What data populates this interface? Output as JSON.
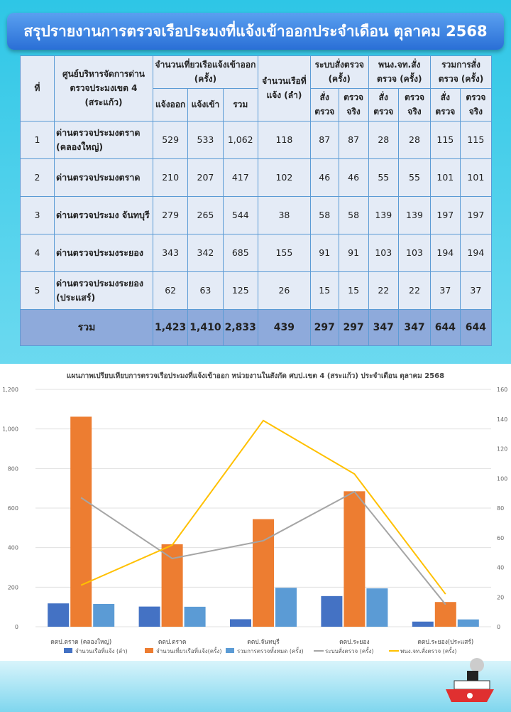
{
  "title": "สรุปรายงานการตรวจเรือประมงที่แจ้งเข้าออกประจำเดือน ตุลาคม 2568",
  "table": {
    "headers": {
      "no": "ที่",
      "center": "ศูนย์บริหารจัดการด่านตรวจประมงเขต 4 (สระแก้ว)",
      "trips": "จำนวนเที่ยวเรือแจ้งเข้าออก (ครั้ง)",
      "trips_out": "แจ้งออก",
      "trips_in": "แจ้งเข้า",
      "trips_total": "รวม",
      "vessels": "จำนวนเรือที่แจ้ง (ลำ)",
      "system": "ระบบสั่งตรวจ (ครั้ง)",
      "officer": "พนง.จท.สั่งตรวจ (ครั้ง)",
      "total_insp": "รวมการสั่งตรวจ (ครั้ง)",
      "ordered": "สั่งตรวจ",
      "actual": "ตรวจจริง"
    },
    "rows": [
      {
        "no": "1",
        "name": "ด่านตรวจประมงตราด (คลองใหญ่)",
        "out": "529",
        "in": "533",
        "total": "1,062",
        "vessels": "118",
        "sys_o": "87",
        "sys_a": "87",
        "off_o": "28",
        "off_a": "28",
        "tot_o": "115",
        "tot_a": "115"
      },
      {
        "no": "2",
        "name": "ด่านตรวจประมงตราด",
        "out": "210",
        "in": "207",
        "total": "417",
        "vessels": "102",
        "sys_o": "46",
        "sys_a": "46",
        "off_o": "55",
        "off_a": "55",
        "tot_o": "101",
        "tot_a": "101"
      },
      {
        "no": "3",
        "name": "ด่านตรวจประมง จันทบุรี",
        "out": "279",
        "in": "265",
        "total": "544",
        "vessels": "38",
        "sys_o": "58",
        "sys_a": "58",
        "off_o": "139",
        "off_a": "139",
        "tot_o": "197",
        "tot_a": "197"
      },
      {
        "no": "4",
        "name": "ด่านตรวจประมงระยอง",
        "out": "343",
        "in": "342",
        "total": "685",
        "vessels": "155",
        "sys_o": "91",
        "sys_a": "91",
        "off_o": "103",
        "off_a": "103",
        "tot_o": "194",
        "tot_a": "194"
      },
      {
        "no": "5",
        "name": "ด่านตรวจประมงระยอง (ประแสร์)",
        "out": "62",
        "in": "63",
        "total": "125",
        "vessels": "26",
        "sys_o": "15",
        "sys_a": "15",
        "off_o": "22",
        "off_a": "22",
        "tot_o": "37",
        "tot_a": "37"
      }
    ],
    "total": {
      "label": "รวม",
      "out": "1,423",
      "in": "1,410",
      "total": "2,833",
      "vessels": "439",
      "sys_o": "297",
      "sys_a": "297",
      "off_o": "347",
      "off_a": "347",
      "tot_o": "644",
      "tot_a": "644"
    }
  },
  "chart_data": {
    "type": "bar",
    "title": "แผนภาพเปรียบเทียบการตรวจเรือประมงที่แจ้งเข้าออก หน่วยงานในสังกัด ศบป.เขต 4 (สระแก้ว) ประจำเดือน ตุลาคม 2568",
    "categories": [
      "ดตป.ตราด (คลองใหญ่)",
      "ดตป.ตราด",
      "ดตป.จันทบุรี",
      "ดตป.ระยอง",
      "ดตป.ระยอง(ประแสร์)"
    ],
    "ylim": [
      0,
      1200
    ],
    "yticks": [
      "0",
      "200",
      "400",
      "600",
      "800",
      "1,000",
      "1,200"
    ],
    "y2lim": [
      0,
      160
    ],
    "y2ticks": [
      "0",
      "20",
      "40",
      "60",
      "80",
      "100",
      "120",
      "140",
      "160"
    ],
    "grid": true,
    "legend": "bottom",
    "series": [
      {
        "name": "จำนวนเรือที่แจ้ง (ลำ)",
        "kind": "bar",
        "axis": "left",
        "color": "#4472c4",
        "values": [
          118,
          102,
          38,
          155,
          26
        ]
      },
      {
        "name": "จำนวนเที่ยวเรือที่แจ้ง(ครั้ง)",
        "kind": "bar",
        "axis": "left",
        "color": "#ed7d31",
        "values": [
          1062,
          417,
          544,
          685,
          125
        ]
      },
      {
        "name": "รวมการตรวจทั้งหมด (ครั้ง)",
        "kind": "bar",
        "axis": "left",
        "color": "#5b9bd5",
        "values": [
          115,
          101,
          197,
          194,
          37
        ]
      },
      {
        "name": "ระบบสั่งตรวจ (ครั้ง)",
        "kind": "line",
        "axis": "right",
        "color": "#a5a5a5",
        "values": [
          87,
          46,
          58,
          91,
          15
        ]
      },
      {
        "name": "พนง.จท.สั่งตรวจ (ครั้ง)",
        "kind": "line",
        "axis": "right",
        "color": "#ffc000",
        "values": [
          28,
          55,
          139,
          103,
          22
        ]
      }
    ]
  }
}
